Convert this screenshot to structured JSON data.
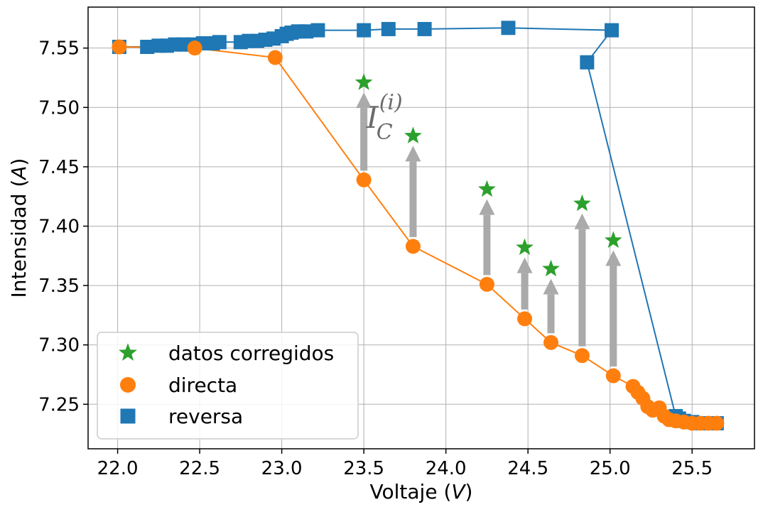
{
  "chart_data": {
    "type": "scatter",
    "title": "",
    "xlabel_parts": [
      "Voltaje (",
      "V",
      ")"
    ],
    "ylabel_parts": [
      "Intensidad (",
      "A",
      ")"
    ],
    "xlim": [
      21.82,
      25.88
    ],
    "ylim": [
      7.2125,
      7.5845
    ],
    "xticks": [
      22.0,
      22.5,
      23.0,
      23.5,
      24.0,
      24.5,
      25.0,
      25.5
    ],
    "xtick_labels": [
      "22.0",
      "22.5",
      "23.0",
      "23.5",
      "24.0",
      "24.5",
      "25.0",
      "25.5"
    ],
    "yticks": [
      7.25,
      7.3,
      7.35,
      7.4,
      7.45,
      7.5,
      7.55
    ],
    "ytick_labels": [
      "7.25",
      "7.30",
      "7.35",
      "7.40",
      "7.45",
      "7.50",
      "7.55"
    ],
    "grid": true,
    "legend_position": "lower-left",
    "annotation": {
      "base": "I",
      "subscript": "C",
      "superscript": "(i)",
      "x": 23.55,
      "y": 7.49
    },
    "series": [
      {
        "name": "datos corregidos",
        "marker": "star",
        "color": "#2ca02c",
        "x": [
          23.5,
          23.8,
          24.25,
          24.48,
          24.64,
          24.83,
          25.02
        ],
        "y": [
          7.521,
          7.476,
          7.431,
          7.382,
          7.364,
          7.419,
          7.388
        ]
      },
      {
        "name": "reversa",
        "marker": "square",
        "color": "#1f77b4",
        "line": true,
        "x": [
          22.01,
          22.18,
          22.25,
          22.3,
          22.35,
          22.4,
          22.45,
          22.52,
          22.58,
          22.62,
          22.75,
          22.8,
          22.85,
          22.9,
          22.95,
          23.0,
          23.03,
          23.06,
          23.1,
          23.15,
          23.22,
          23.5,
          23.65,
          23.87,
          24.38,
          25.01,
          24.86,
          25.4,
          25.42,
          25.45,
          25.5,
          25.55,
          25.6,
          25.65
        ],
        "y": [
          7.551,
          7.551,
          7.552,
          7.552,
          7.553,
          7.553,
          7.553,
          7.554,
          7.554,
          7.555,
          7.555,
          7.556,
          7.556,
          7.557,
          7.558,
          7.56,
          7.562,
          7.563,
          7.564,
          7.564,
          7.565,
          7.565,
          7.566,
          7.566,
          7.567,
          7.565,
          7.538,
          7.24,
          7.238,
          7.236,
          7.235,
          7.234,
          7.234,
          7.234
        ]
      },
      {
        "name": "directa",
        "marker": "circle",
        "color": "#ff7f0e",
        "line": true,
        "x": [
          22.01,
          22.47,
          22.96,
          23.5,
          23.8,
          24.25,
          24.48,
          24.64,
          24.83,
          25.02,
          25.14,
          25.17,
          25.2,
          25.23,
          25.26,
          25.3,
          25.33,
          25.36,
          25.4,
          25.45,
          25.5,
          25.55,
          25.6,
          25.65
        ],
        "y": [
          7.551,
          7.55,
          7.542,
          7.439,
          7.383,
          7.351,
          7.322,
          7.302,
          7.291,
          7.274,
          7.265,
          7.26,
          7.255,
          7.248,
          7.245,
          7.247,
          7.24,
          7.237,
          7.236,
          7.235,
          7.234,
          7.234,
          7.234,
          7.234
        ]
      }
    ],
    "arrows": [
      {
        "x": 23.5,
        "from": 7.439,
        "to": 7.521
      },
      {
        "x": 23.8,
        "from": 7.383,
        "to": 7.476
      },
      {
        "x": 24.25,
        "from": 7.351,
        "to": 7.431
      },
      {
        "x": 24.48,
        "from": 7.322,
        "to": 7.382
      },
      {
        "x": 24.64,
        "from": 7.302,
        "to": 7.364
      },
      {
        "x": 24.83,
        "from": 7.291,
        "to": 7.419
      },
      {
        "x": 25.02,
        "from": 7.274,
        "to": 7.388
      }
    ],
    "arrow_color": "#aaaaaa"
  }
}
